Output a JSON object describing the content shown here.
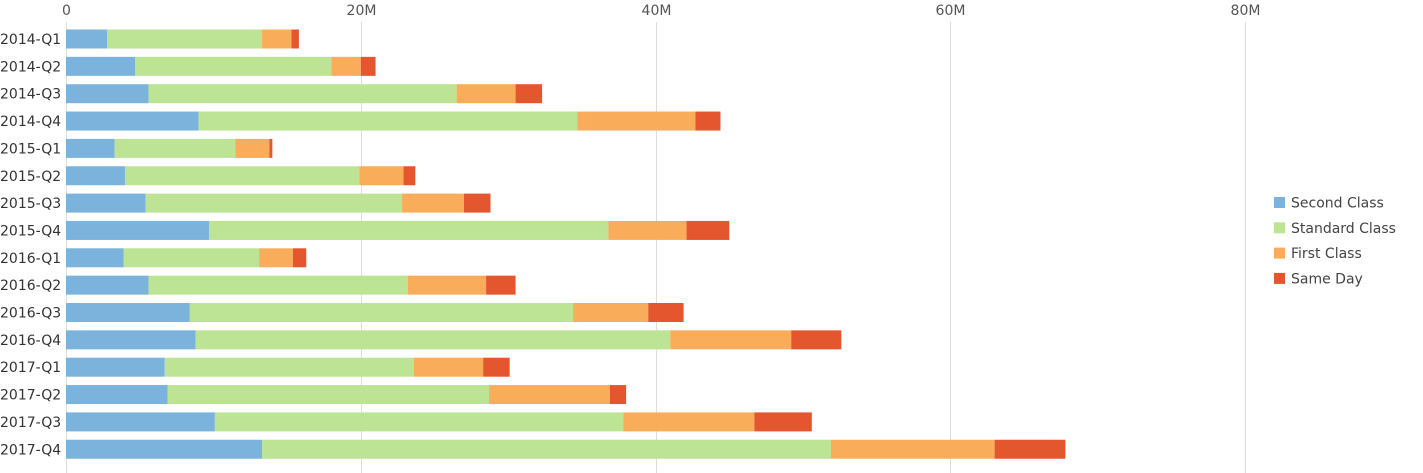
{
  "chart_data": {
    "type": "bar",
    "orientation": "horizontal",
    "stacked": true,
    "categories": [
      "2014-Q1",
      "2014-Q2",
      "2014-Q3",
      "2014-Q4",
      "2015-Q1",
      "2015-Q2",
      "2015-Q3",
      "2015-Q4",
      "2016-Q1",
      "2016-Q2",
      "2016-Q3",
      "2016-Q4",
      "2017-Q1",
      "2017-Q2",
      "2017-Q3",
      "2017-Q4"
    ],
    "series": [
      {
        "name": "Second Class",
        "color": "#7bb3dc",
        "values": [
          2.8,
          4.7,
          5.6,
          9.0,
          3.3,
          4.0,
          5.4,
          9.7,
          3.9,
          5.6,
          8.4,
          8.8,
          6.7,
          6.9,
          10.1,
          13.3
        ]
      },
      {
        "name": "Standard Class",
        "color": "#bde495",
        "values": [
          10.5,
          13.3,
          20.9,
          25.7,
          8.2,
          15.9,
          17.4,
          27.1,
          9.2,
          17.6,
          26.0,
          32.2,
          16.9,
          21.8,
          27.7,
          38.6
        ]
      },
      {
        "name": "First Class",
        "color": "#f9ad5a",
        "values": [
          2.0,
          2.0,
          4.0,
          8.0,
          2.3,
          3.0,
          4.2,
          5.3,
          2.3,
          5.3,
          5.1,
          8.2,
          4.7,
          8.2,
          8.9,
          11.1
        ]
      },
      {
        "name": "Same Day",
        "color": "#e4572e",
        "values": [
          0.5,
          1.0,
          1.8,
          1.7,
          0.2,
          0.8,
          1.8,
          2.9,
          0.9,
          2.0,
          2.4,
          3.4,
          1.8,
          1.1,
          3.9,
          4.8
        ]
      }
    ],
    "xlim": [
      0,
      90
    ],
    "x_unit": "M",
    "x_ticks": [
      0,
      20,
      40,
      60,
      80
    ],
    "x_tick_labels": [
      "0",
      "20M",
      "40M",
      "60M",
      "80M"
    ],
    "grid": true,
    "legend_position": "right"
  }
}
